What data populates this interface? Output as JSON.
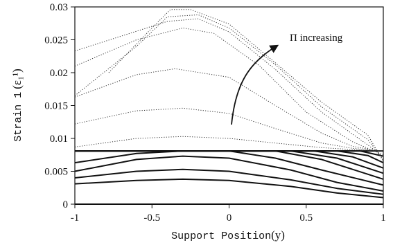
{
  "chart_data": {
    "type": "line",
    "xlabel_text": "Support Position",
    "xlabel_var": "(y)",
    "ylabel_text": "Strain 1",
    "ylabel_var": "(ε₁¹)",
    "annotation": "Π increasing",
    "xlim": [
      -1,
      1
    ],
    "ylim": [
      0,
      0.03
    ],
    "xticks": [
      -1,
      -0.5,
      0,
      0.5,
      1
    ],
    "xtick_labels": [
      "-1",
      "-0.5",
      "0",
      "0.5",
      "1"
    ],
    "yticks": [
      0,
      0.005,
      0.01,
      0.015,
      0.02,
      0.025,
      0.03
    ],
    "ytick_labels": [
      "0",
      "0.005",
      "0.01",
      "0.015",
      "0.02",
      "0.025",
      "0.03"
    ],
    "grid": false,
    "series": [
      {
        "style": "solid",
        "x": [
          -1,
          -0.5,
          -0.3,
          0,
          0.5,
          1
        ],
        "y": [
          0,
          0,
          0,
          0,
          0,
          0
        ]
      },
      {
        "style": "solid",
        "x": [
          -1,
          -0.6,
          -0.3,
          0,
          0.4,
          0.7,
          1
        ],
        "y": [
          0.0031,
          0.0036,
          0.0038,
          0.0036,
          0.0027,
          0.0017,
          0.001
        ]
      },
      {
        "style": "solid",
        "x": [
          -1,
          -0.6,
          -0.3,
          0,
          0.4,
          0.7,
          1
        ],
        "y": [
          0.004,
          0.005,
          0.0053,
          0.005,
          0.0037,
          0.0024,
          0.0015
        ]
      },
      {
        "style": "solid",
        "x": [
          -1,
          -0.6,
          -0.3,
          0,
          0.4,
          0.7,
          1
        ],
        "y": [
          0.005,
          0.0068,
          0.0073,
          0.007,
          0.0052,
          0.0033,
          0.002
        ]
      },
      {
        "style": "solid",
        "x": [
          -1,
          -0.6,
          -0.3,
          0,
          0.3,
          0.6,
          1
        ],
        "y": [
          0.0063,
          0.0077,
          0.0081,
          0.0081,
          0.007,
          0.0052,
          0.0029
        ]
      },
      {
        "style": "solid",
        "x": [
          -1,
          0.3,
          0.6,
          1
        ],
        "y": [
          0.0081,
          0.0081,
          0.0068,
          0.0038
        ]
      },
      {
        "style": "solid",
        "x": [
          -1,
          0.4,
          0.7,
          1
        ],
        "y": [
          0.0081,
          0.0081,
          0.007,
          0.0047
        ]
      },
      {
        "style": "solid",
        "x": [
          -1,
          0.55,
          0.8,
          1
        ],
        "y": [
          0.0081,
          0.0081,
          0.0072,
          0.0055
        ]
      },
      {
        "style": "solid",
        "x": [
          -1,
          0.7,
          0.9,
          1
        ],
        "y": [
          0.0081,
          0.0081,
          0.0074,
          0.0063
        ]
      },
      {
        "style": "solid",
        "x": [
          -1,
          0.85,
          1
        ],
        "y": [
          0.0081,
          0.0081,
          0.0073
        ]
      },
      {
        "style": "solid",
        "x": [
          -1,
          1
        ],
        "y": [
          0.0081,
          0.0081
        ]
      },
      {
        "style": "dotted",
        "x": [
          -1,
          -0.6,
          -0.3,
          0,
          0.3,
          0.6,
          0.8,
          1
        ],
        "y": [
          0.0087,
          0.01,
          0.0103,
          0.01,
          0.0093,
          0.0086,
          0.0083,
          0.0081
        ]
      },
      {
        "style": "dotted",
        "x": [
          -1,
          -0.6,
          -0.3,
          0,
          0.3,
          0.6,
          0.8,
          1
        ],
        "y": [
          0.0122,
          0.0142,
          0.0146,
          0.0138,
          0.0115,
          0.0093,
          0.0085,
          0.0081
        ]
      },
      {
        "style": "dotted",
        "x": [
          -1,
          -0.6,
          -0.35,
          0,
          0.3,
          0.6,
          0.8,
          1
        ],
        "y": [
          0.0163,
          0.0197,
          0.0206,
          0.0193,
          0.015,
          0.0108,
          0.0088,
          0.008
        ]
      },
      {
        "style": "dotted",
        "x": [
          -1,
          -0.6,
          -0.3,
          -0.1,
          0.2,
          0.5,
          0.8,
          1
        ],
        "y": [
          0.021,
          0.025,
          0.0268,
          0.026,
          0.021,
          0.014,
          0.0095,
          0.0075
        ]
      },
      {
        "style": "dotted",
        "x": [
          -1,
          -0.6,
          -0.4,
          -0.2,
          0,
          0.3,
          0.6,
          0.9,
          1
        ],
        "y": [
          0.0233,
          0.0263,
          0.0278,
          0.0282,
          0.0262,
          0.0205,
          0.014,
          0.009,
          0.0072
        ]
      },
      {
        "style": "dotted",
        "x": [
          -1,
          -0.6,
          -0.4,
          -0.2,
          0,
          0.3,
          0.6,
          0.9,
          1
        ],
        "y": [
          0.0165,
          0.024,
          0.0285,
          0.0288,
          0.0268,
          0.0212,
          0.0148,
          0.0098,
          0.0068
        ]
      },
      {
        "style": "dotted",
        "x": [
          -0.78,
          -0.5,
          -0.38,
          -0.25,
          0,
          0.3,
          0.6,
          0.9,
          1
        ],
        "y": [
          0.02,
          0.0268,
          0.0296,
          0.0296,
          0.0274,
          0.0215,
          0.0155,
          0.0105,
          0.0065
        ]
      }
    ]
  }
}
